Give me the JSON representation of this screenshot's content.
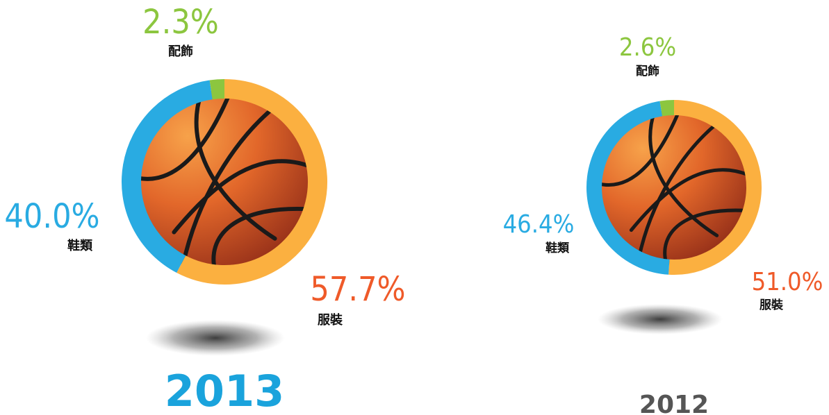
{
  "chart_data": [
    {
      "type": "donut",
      "title": "2013",
      "categories": [
        "服裝",
        "鞋類",
        "配飾"
      ],
      "values": [
        57.7,
        40.0,
        2.3
      ],
      "value_labels": [
        "57.7%",
        "40.0%",
        "2.3%"
      ],
      "colors": [
        "#fbb040",
        "#29abe2",
        "#8cc63f"
      ],
      "label_colors": [
        "#ef5a29",
        "#29abe2",
        "#8cc63f"
      ],
      "title_color": "#1aa3dc"
    },
    {
      "type": "donut",
      "title": "2012",
      "categories": [
        "服裝",
        "鞋類",
        "配飾"
      ],
      "values": [
        51.0,
        46.4,
        2.6
      ],
      "value_labels": [
        "51.0%",
        "46.4%",
        "2.6%"
      ],
      "colors": [
        "#fbb040",
        "#29abe2",
        "#8cc63f"
      ],
      "label_colors": [
        "#ef5a29",
        "#29abe2",
        "#8cc63f"
      ],
      "title_color": "#555555"
    }
  ]
}
